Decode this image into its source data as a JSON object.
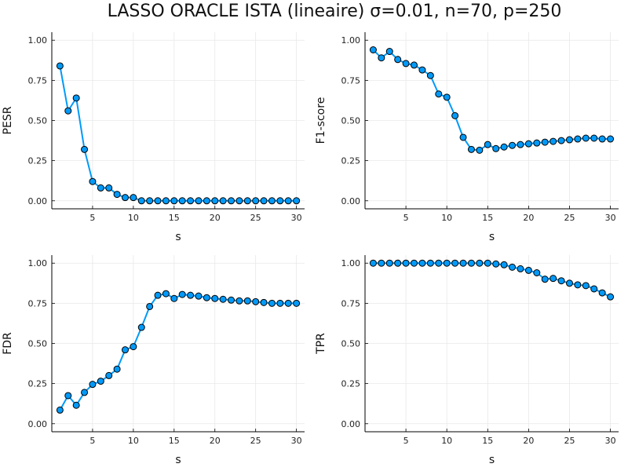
{
  "chart_data": {
    "type": "line",
    "title": "LASSO ORACLE ISTA (lineaire) σ=0.01, n=70, p=250",
    "line_color": "#009af9",
    "marker_color": "#009af9",
    "x": [
      1,
      2,
      3,
      4,
      5,
      6,
      7,
      8,
      9,
      10,
      11,
      12,
      13,
      14,
      15,
      16,
      17,
      18,
      19,
      20,
      21,
      22,
      23,
      24,
      25,
      26,
      27,
      28,
      29,
      30
    ],
    "xticks": [
      5,
      10,
      15,
      20,
      25,
      30
    ],
    "yticks": [
      0.0,
      0.25,
      0.5,
      0.75,
      1.0
    ],
    "ytick_labels": [
      "0.00",
      "0.25",
      "0.50",
      "0.75",
      "1.00"
    ],
    "xlim": [
      0,
      31
    ],
    "ylim": [
      -0.05,
      1.05
    ],
    "grid": true,
    "subplots": [
      {
        "ylabel": "PESR",
        "xlabel": "s",
        "values": [
          0.84,
          0.56,
          0.64,
          0.32,
          0.12,
          0.08,
          0.08,
          0.04,
          0.02,
          0.02,
          0.0,
          0.0,
          0.0,
          0.0,
          0.0,
          0.0,
          0.0,
          0.0,
          0.0,
          0.0,
          0.0,
          0.0,
          0.0,
          0.0,
          0.0,
          0.0,
          0.0,
          0.0,
          0.0,
          0.0
        ]
      },
      {
        "ylabel": "F1-score",
        "xlabel": "s",
        "values": [
          0.94,
          0.89,
          0.93,
          0.88,
          0.855,
          0.845,
          0.815,
          0.78,
          0.665,
          0.645,
          0.53,
          0.395,
          0.32,
          0.315,
          0.35,
          0.325,
          0.335,
          0.345,
          0.35,
          0.355,
          0.36,
          0.365,
          0.37,
          0.375,
          0.38,
          0.385,
          0.39,
          0.39,
          0.385,
          0.385
        ]
      },
      {
        "ylabel": "FDR",
        "xlabel": "s",
        "values": [
          0.085,
          0.175,
          0.115,
          0.195,
          0.245,
          0.265,
          0.3,
          0.34,
          0.46,
          0.48,
          0.6,
          0.73,
          0.8,
          0.81,
          0.78,
          0.805,
          0.8,
          0.795,
          0.785,
          0.78,
          0.775,
          0.77,
          0.765,
          0.765,
          0.76,
          0.755,
          0.75,
          0.75,
          0.75,
          0.75
        ]
      },
      {
        "ylabel": "TPR",
        "xlabel": "s",
        "values": [
          1.0,
          1.0,
          1.0,
          1.0,
          1.0,
          1.0,
          1.0,
          1.0,
          1.0,
          1.0,
          1.0,
          1.0,
          1.0,
          1.0,
          1.0,
          0.995,
          0.99,
          0.975,
          0.965,
          0.955,
          0.94,
          0.9,
          0.905,
          0.89,
          0.875,
          0.865,
          0.86,
          0.84,
          0.815,
          0.79
        ]
      }
    ]
  }
}
